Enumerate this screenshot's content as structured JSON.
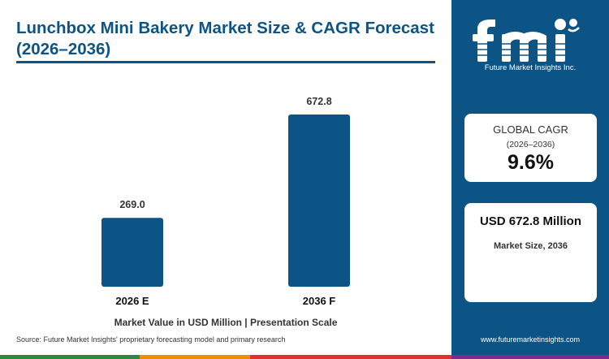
{
  "title": "Lunchbox Mini Bakery Market Size & CAGR Forecast (2026–2036)",
  "chart_data": {
    "type": "bar",
    "categories": [
      "2026 E",
      "2036 F"
    ],
    "values": [
      269.0,
      672.8
    ],
    "value_labels": [
      "269.0",
      "672.8"
    ],
    "xlabel": "Market Value in USD Million | Presentation Scale",
    "ylabel": "",
    "ylim": [
      0,
      700
    ],
    "grid": false,
    "bar_color": "#0c5486"
  },
  "source": "Source: Future Market Insights' proprietary forecasting model and primary research",
  "brand": {
    "logo_text": "fmi",
    "tagline": "Future Market Insights Inc.",
    "website": "www.futuremarketinsights.com",
    "panel_color": "#0c5486"
  },
  "cards": {
    "cagr": {
      "heading": "GLOBAL CAGR",
      "period": "(2026–2036)",
      "value": "9.6%"
    },
    "market_size": {
      "value": "USD 672.8 Million",
      "label": "Market Size, 2036"
    }
  },
  "stripe_colors": [
    "#2b8a3e",
    "#f08c00",
    "#e03131",
    "#7b2d8e"
  ]
}
